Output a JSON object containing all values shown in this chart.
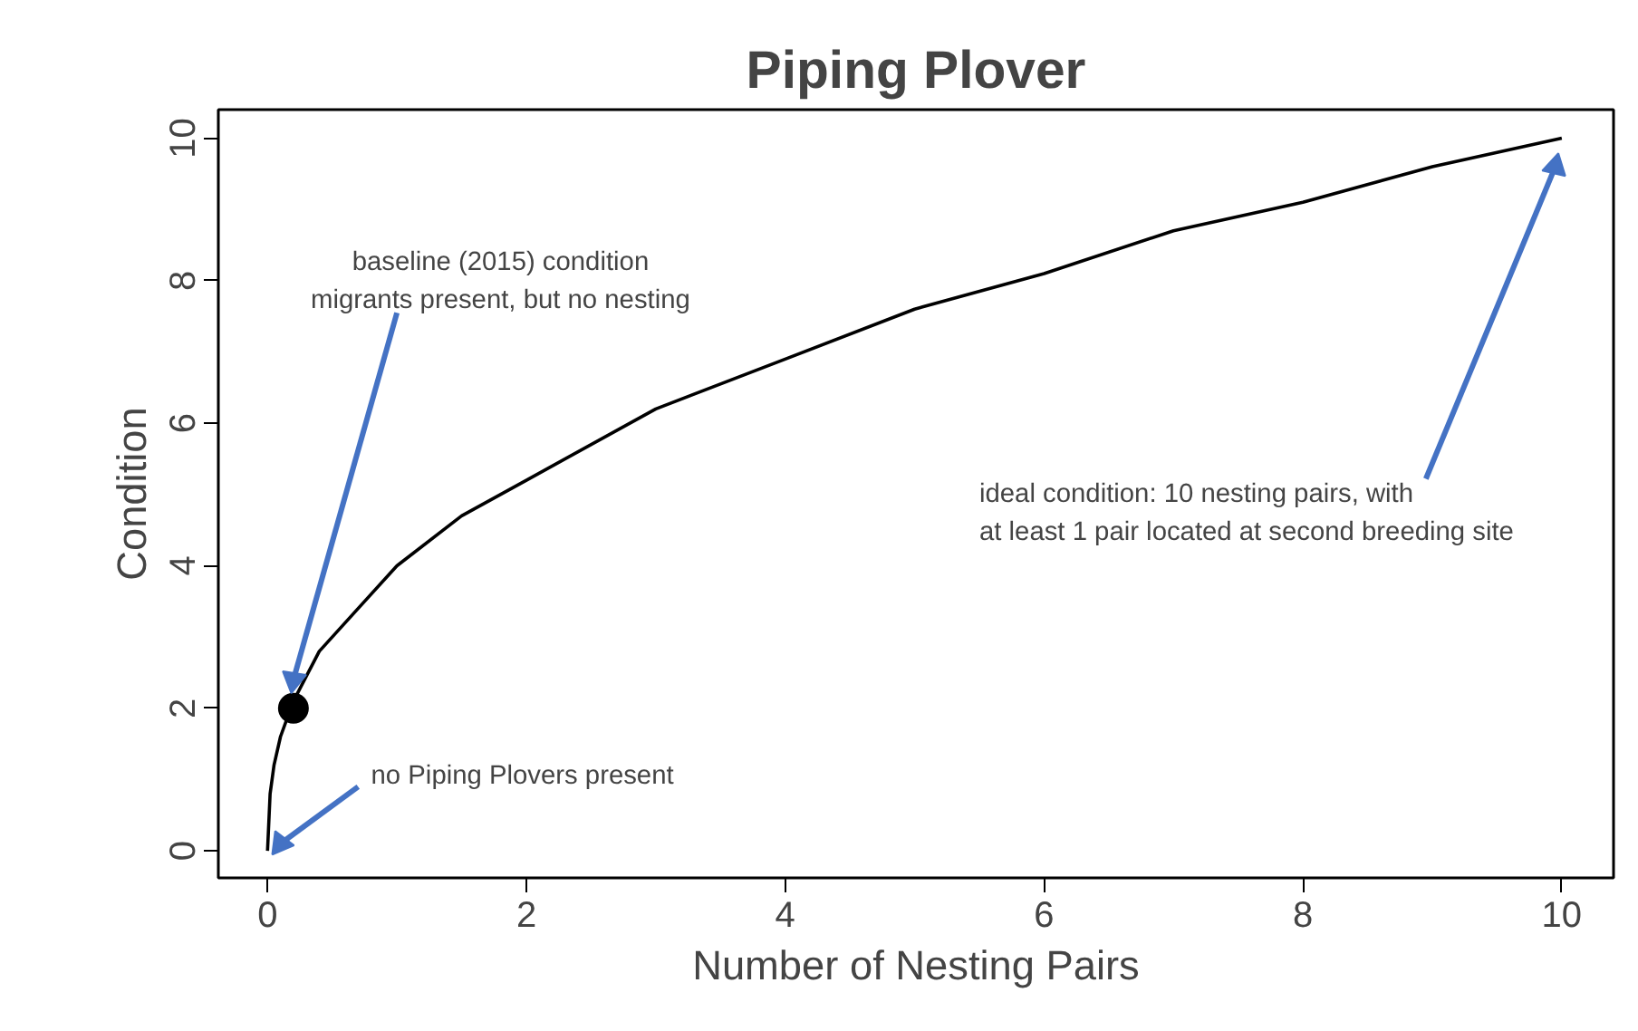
{
  "chart_data": {
    "type": "line",
    "title": "Piping Plover",
    "xlabel": "Number of Nesting Pairs",
    "ylabel": "Condition",
    "xlim": [
      -0.38,
      10.4
    ],
    "ylim": [
      -0.38,
      10.4
    ],
    "xticks": [
      0,
      2,
      4,
      6,
      8,
      10
    ],
    "yticks": [
      0,
      2,
      4,
      6,
      8,
      10
    ],
    "grid": false,
    "series": [
      {
        "type": "line",
        "color": "#000000",
        "marker": "none",
        "x": [
          0,
          0.02,
          0.05,
          0.1,
          0.2,
          0.4,
          0.7,
          1,
          1.5,
          2,
          3,
          4,
          5,
          6,
          7,
          8,
          9,
          10
        ],
        "values": [
          0,
          0.8,
          1.2,
          1.6,
          2.1,
          2.8,
          3.4,
          4.0,
          4.7,
          5.2,
          6.2,
          6.9,
          7.6,
          8.1,
          8.7,
          9.1,
          9.6,
          10
        ]
      },
      {
        "type": "scatter",
        "color": "#000000",
        "marker": "circle",
        "x": [
          0.2
        ],
        "values": [
          2
        ]
      }
    ],
    "annotations": [
      {
        "text": "baseline (2015) condition\nmigrants present, but no nesting",
        "x": 0.2,
        "y": 2.4
      },
      {
        "text": "no Piping Plovers present",
        "x": 0,
        "y": 0
      },
      {
        "text": "ideal condition: 10 nesting pairs, with\nat least 1 pair located at second breeding site",
        "x": 9.95,
        "y": 9.6
      }
    ]
  }
}
